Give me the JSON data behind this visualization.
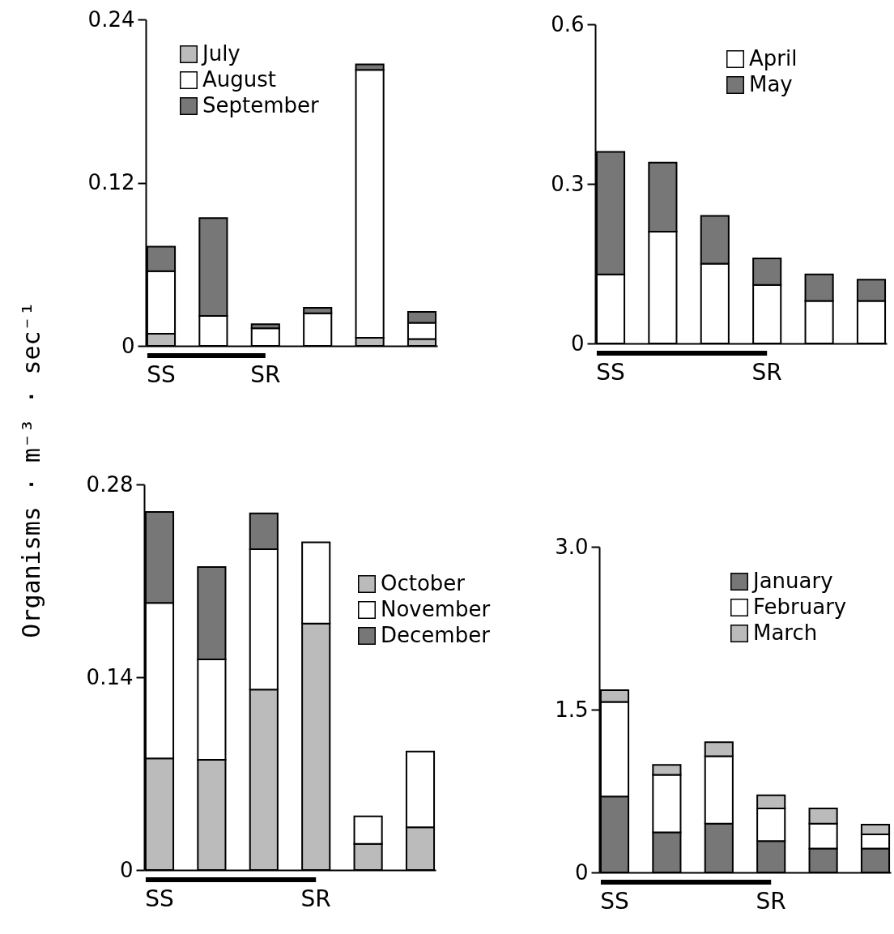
{
  "chart_data": [
    {
      "type": "bar",
      "stacked": true,
      "ylabel": "Organisms · m⁻³ · sec⁻¹",
      "categories": [
        "SS",
        null,
        "SR",
        null,
        null,
        null
      ],
      "ylim": [
        0,
        0.24
      ],
      "yticks": [
        0,
        0.12,
        0.24
      ],
      "legend": "top left",
      "series": [
        {
          "name": "July",
          "color": "#bbbbbb",
          "values": [
            0.009,
            null,
            null,
            null,
            0.006,
            0.005
          ]
        },
        {
          "name": "August",
          "color": "#ffffff",
          "values": [
            0.046,
            0.022,
            0.013,
            0.024,
            0.197,
            0.012
          ]
        },
        {
          "name": "September",
          "color": "#777777",
          "values": [
            0.018,
            0.072,
            0.003,
            0.004,
            0.004,
            0.008
          ]
        }
      ]
    },
    {
      "type": "bar",
      "stacked": true,
      "categories": [
        "SS",
        null,
        null,
        "SR",
        null,
        null
      ],
      "ylim": [
        0,
        0.6
      ],
      "yticks": [
        0,
        0.3,
        0.6
      ],
      "legend": "top right",
      "series": [
        {
          "name": "April",
          "color": "#ffffff",
          "values": [
            0.13,
            0.21,
            0.15,
            0.11,
            0.08,
            0.08
          ]
        },
        {
          "name": "May",
          "color": "#777777",
          "values": [
            0.23,
            0.13,
            0.09,
            0.05,
            0.05,
            0.04
          ]
        }
      ]
    },
    {
      "type": "bar",
      "stacked": true,
      "categories": [
        "SS",
        null,
        null,
        "SR",
        null,
        null
      ],
      "ylim": [
        0,
        0.28
      ],
      "yticks": [
        0,
        0.14,
        0.28
      ],
      "legend": "right",
      "series": [
        {
          "name": "October",
          "color": "#bbbbbb",
          "values": [
            0.081,
            0.08,
            0.131,
            0.179,
            0.019,
            0.031
          ]
        },
        {
          "name": "November",
          "color": "#ffffff",
          "values": [
            0.113,
            0.073,
            0.102,
            0.059,
            0.02,
            0.055
          ]
        },
        {
          "name": "December",
          "color": "#777777",
          "values": [
            0.066,
            0.067,
            0.026,
            null,
            null,
            null
          ]
        }
      ]
    },
    {
      "type": "bar",
      "stacked": true,
      "categories": [
        "SS",
        null,
        null,
        "SR",
        null,
        null
      ],
      "ylim": [
        0,
        3
      ],
      "yticks": [
        0,
        1.5,
        {
          "value": 3,
          "label": "3.0"
        }
      ],
      "legend": "top right",
      "series": [
        {
          "name": "January",
          "color": "#777777",
          "values": [
            0.7,
            0.37,
            0.45,
            0.29,
            0.22,
            0.22
          ]
        },
        {
          "name": "February",
          "color": "#ffffff",
          "values": [
            0.87,
            0.53,
            0.62,
            0.3,
            0.23,
            0.13
          ]
        },
        {
          "name": "March",
          "color": "#bbbbbb",
          "values": [
            0.11,
            0.09,
            0.13,
            0.12,
            0.14,
            0.09
          ]
        }
      ]
    }
  ]
}
